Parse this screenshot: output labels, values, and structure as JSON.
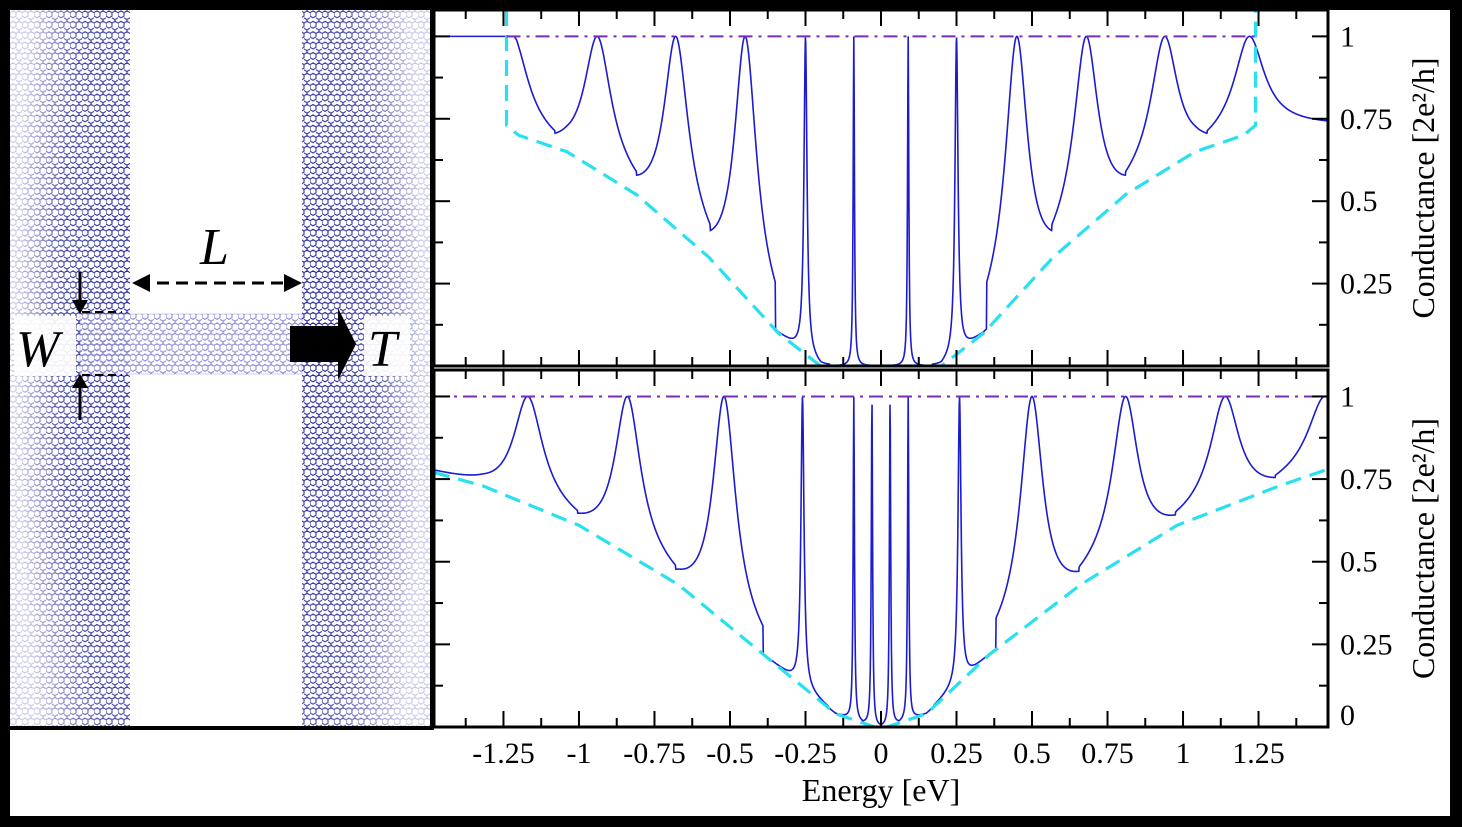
{
  "schematic": {
    "labels": {
      "length": "L",
      "width": "W",
      "transmission": "T"
    },
    "colors": {
      "lattice": "#1e2296",
      "arrow": "#000000"
    }
  },
  "chart_data": [
    {
      "type": "line",
      "panel": "top",
      "xlim": [
        -1.48,
        1.48
      ],
      "ylim": [
        0,
        1.08
      ],
      "ylabel": "Conductance [2e²/h]",
      "yticks": [
        0.25,
        0.5,
        0.75,
        1
      ],
      "ytick_labels": [
        "0.25",
        "0.5",
        "0.75",
        "1"
      ],
      "grid": false,
      "series": [
        {
          "style": "solid",
          "color": "#1b1bd0",
          "resonances": [
            -1.22,
            -0.94,
            -0.68,
            -0.45,
            -0.25,
            -0.09,
            0.09,
            0.25,
            0.45,
            0.68,
            0.94,
            1.22
          ],
          "minima": [
            [
              -1.04,
              0.65
            ],
            [
              -0.81,
              0.52
            ],
            [
              -0.57,
              0.33
            ],
            [
              -0.34,
              0.1
            ],
            [
              0.34,
              0.1
            ],
            [
              0.57,
              0.33
            ],
            [
              0.81,
              0.52
            ],
            [
              1.04,
              0.65
            ]
          ],
          "peak_value": 1
        },
        {
          "style": "dashed",
          "color": "#29e0f0",
          "points": [
            [
              -1.24,
              1.08
            ],
            [
              -1.24,
              0.73
            ],
            [
              -1.2,
              0.7
            ],
            [
              -1.04,
              0.65
            ],
            [
              -0.81,
              0.52
            ],
            [
              -0.57,
              0.33
            ],
            [
              -0.34,
              0.1
            ],
            [
              -0.2,
              0.0
            ],
            [
              0.2,
              0.0
            ],
            [
              0.34,
              0.1
            ],
            [
              0.57,
              0.33
            ],
            [
              0.81,
              0.52
            ],
            [
              1.04,
              0.65
            ],
            [
              1.2,
              0.7
            ],
            [
              1.24,
              0.73
            ],
            [
              1.24,
              1.08
            ]
          ]
        },
        {
          "style": "dashdot",
          "color": "#7a2bbf",
          "points": [
            [
              -1.24,
              1.0
            ],
            [
              1.24,
              1.0
            ]
          ]
        }
      ]
    },
    {
      "type": "line",
      "panel": "bottom",
      "xlim": [
        -1.48,
        1.48
      ],
      "ylim": [
        0,
        1.08
      ],
      "xlabel": "Energy [eV]",
      "ylabel": "Conductance [2e²/h]",
      "xticks": [
        -1.25,
        -1,
        -0.75,
        -0.5,
        -0.25,
        0,
        0.25,
        0.5,
        0.75,
        1,
        1.25
      ],
      "xtick_labels": [
        "-1.25",
        "-1",
        "-0.75",
        "-0.5",
        "-0.25",
        "0",
        "0.25",
        "0.5",
        "0.75",
        "1",
        "1.25"
      ],
      "yticks": [
        0,
        0.25,
        0.5,
        0.75,
        1
      ],
      "ytick_labels": [
        "0",
        "0.25",
        "0.5",
        "0.75",
        "1"
      ],
      "grid": false,
      "series": [
        {
          "style": "solid",
          "color": "#1b1bd0",
          "resonances": [
            -1.17,
            -0.84,
            -0.52,
            -0.26,
            -0.09,
            -0.03,
            0.03,
            0.09,
            0.26,
            0.5,
            0.81,
            1.14,
            1.47
          ],
          "minima": [
            [
              -1.32,
              0.73
            ],
            [
              -1.0,
              0.61
            ],
            [
              -0.67,
              0.43
            ],
            [
              -0.39,
              0.22
            ],
            [
              -0.15,
              0.04
            ],
            [
              0.15,
              0.04
            ],
            [
              0.36,
              0.22
            ],
            [
              0.66,
              0.43
            ],
            [
              0.98,
              0.61
            ],
            [
              1.32,
              0.73
            ]
          ],
          "peak_value": 1
        },
        {
          "style": "dashed",
          "color": "#29e0f0",
          "points": [
            [
              -1.48,
              0.77
            ],
            [
              -1.32,
              0.73
            ],
            [
              -1.0,
              0.61
            ],
            [
              -0.67,
              0.43
            ],
            [
              -0.39,
              0.22
            ],
            [
              -0.15,
              0.04
            ],
            [
              -0.02,
              0.0
            ],
            [
              0.02,
              0.0
            ],
            [
              0.15,
              0.04
            ],
            [
              0.36,
              0.22
            ],
            [
              0.66,
              0.43
            ],
            [
              0.98,
              0.61
            ],
            [
              1.32,
              0.73
            ],
            [
              1.48,
              0.78
            ]
          ]
        },
        {
          "style": "dashdot",
          "color": "#7a2bbf",
          "points": [
            [
              -1.48,
              1.0
            ],
            [
              1.48,
              1.0
            ]
          ]
        }
      ]
    }
  ]
}
